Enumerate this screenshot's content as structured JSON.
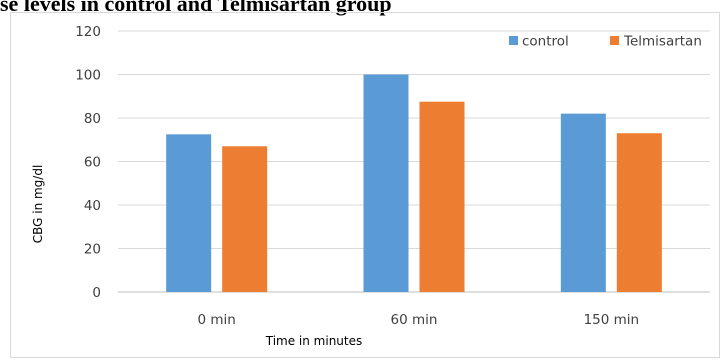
{
  "chart_data": {
    "type": "bar",
    "title": "se levels in control and Telmisartan group",
    "xlabel": "Time in minutes",
    "ylabel": "CBG in mg/dl",
    "categories": [
      "0 min",
      "60 min",
      "150 min"
    ],
    "series": [
      {
        "name": "control",
        "color": "#5b9bd5",
        "values": [
          72.5,
          100,
          82
        ]
      },
      {
        "name": "Telmisartan",
        "color": "#ed7d31",
        "values": [
          67,
          87.5,
          73
        ]
      }
    ],
    "ylim": [
      0,
      120
    ],
    "yticks": [
      "0",
      "20",
      "40",
      "60",
      "80",
      "100",
      "120"
    ],
    "grid": true,
    "legend": "top-right"
  }
}
